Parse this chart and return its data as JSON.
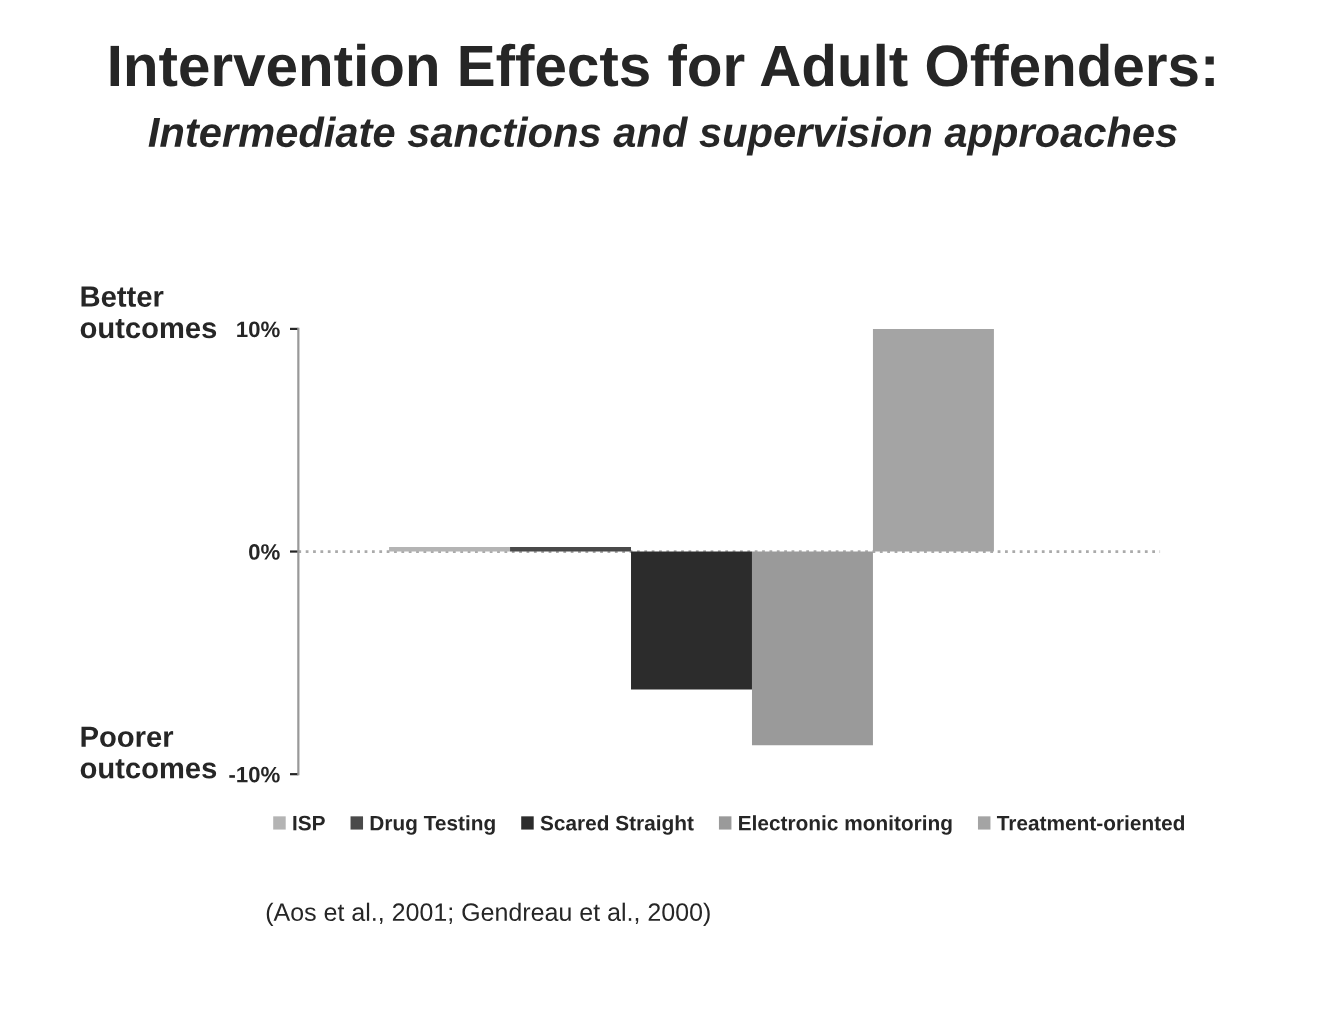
{
  "chart_data": {
    "type": "bar",
    "title": "Intervention Effects for Adult Offenders:",
    "subtitle": "Intermediate sanctions and supervision approaches",
    "categories": [
      null
    ],
    "series": [
      {
        "name": "ISP",
        "color": "#b4b4b4",
        "values": [
          0.2
        ]
      },
      {
        "name": "Drug Testing",
        "color": "#4a4a4a",
        "values": [
          0.2
        ]
      },
      {
        "name": "Scared Straight",
        "color": "#2c2c2c",
        "values": [
          -6.2
        ]
      },
      {
        "name": "Electronic monitoring",
        "color": "#9a9a9a",
        "values": [
          -8.7
        ]
      },
      {
        "name": "Treatment-oriented",
        "color": "#a4a4a4",
        "values": [
          10
        ]
      }
    ],
    "ylim": [
      -10,
      10
    ],
    "yticks": [
      {
        "value": -10,
        "label": "-10%"
      },
      {
        "value": 0,
        "label": "0%"
      },
      {
        "value": 10,
        "label": "10%"
      }
    ],
    "ref_lines": [
      {
        "axis": "y",
        "value": 0,
        "color": "#aaaaaa",
        "line_style": "dotted"
      }
    ],
    "annotations": [
      "Better outcomes",
      "Poorer outcomes",
      "(Aos et al., 2001; Gendreau et al., 2000)"
    ],
    "grid": false,
    "legend": "bottom",
    "tick_labels": "y"
  }
}
